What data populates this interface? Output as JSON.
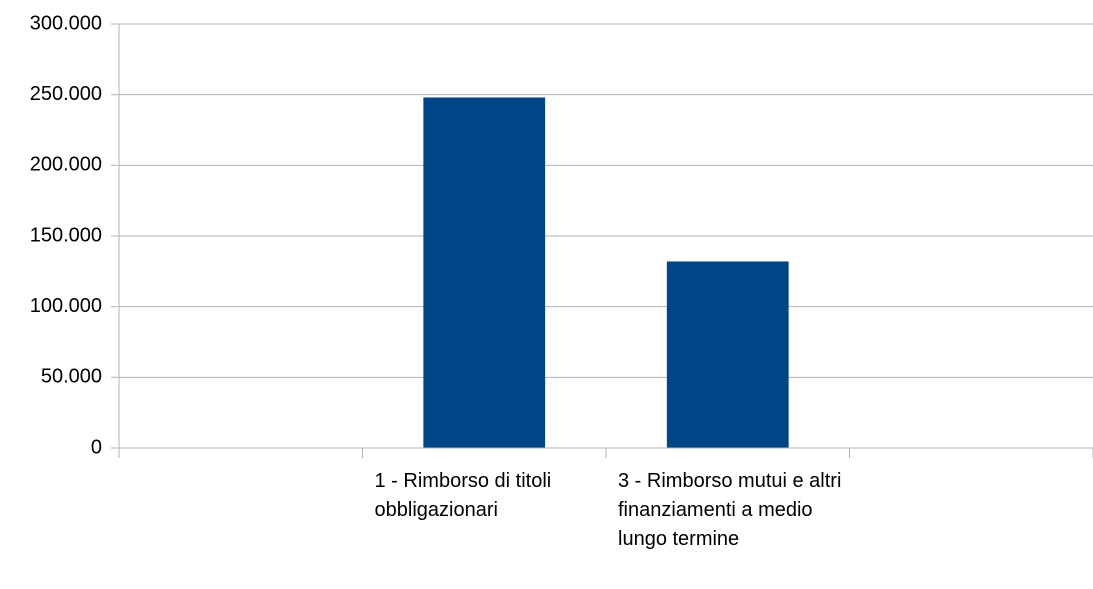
{
  "chart_data": {
    "type": "bar",
    "categories": [
      null,
      "1 - Rimborso di titoli obbligazionari",
      "3 - Rimborso mutui e altri finanziamenti a medio lungo termine",
      null
    ],
    "values": [
      null,
      248000,
      132000,
      null
    ],
    "color": "#004586",
    "ylim": [
      0,
      300000
    ],
    "yticks": [
      0,
      {
        "value": 50000,
        "label": "50.000"
      },
      {
        "value": 100000,
        "label": "100.000"
      },
      {
        "value": 150000,
        "label": "150.000"
      },
      {
        "value": 200000,
        "label": "200.000"
      },
      {
        "value": 250000,
        "label": "250.000"
      },
      {
        "value": 300000,
        "label": "300.000"
      }
    ],
    "grid": true
  }
}
